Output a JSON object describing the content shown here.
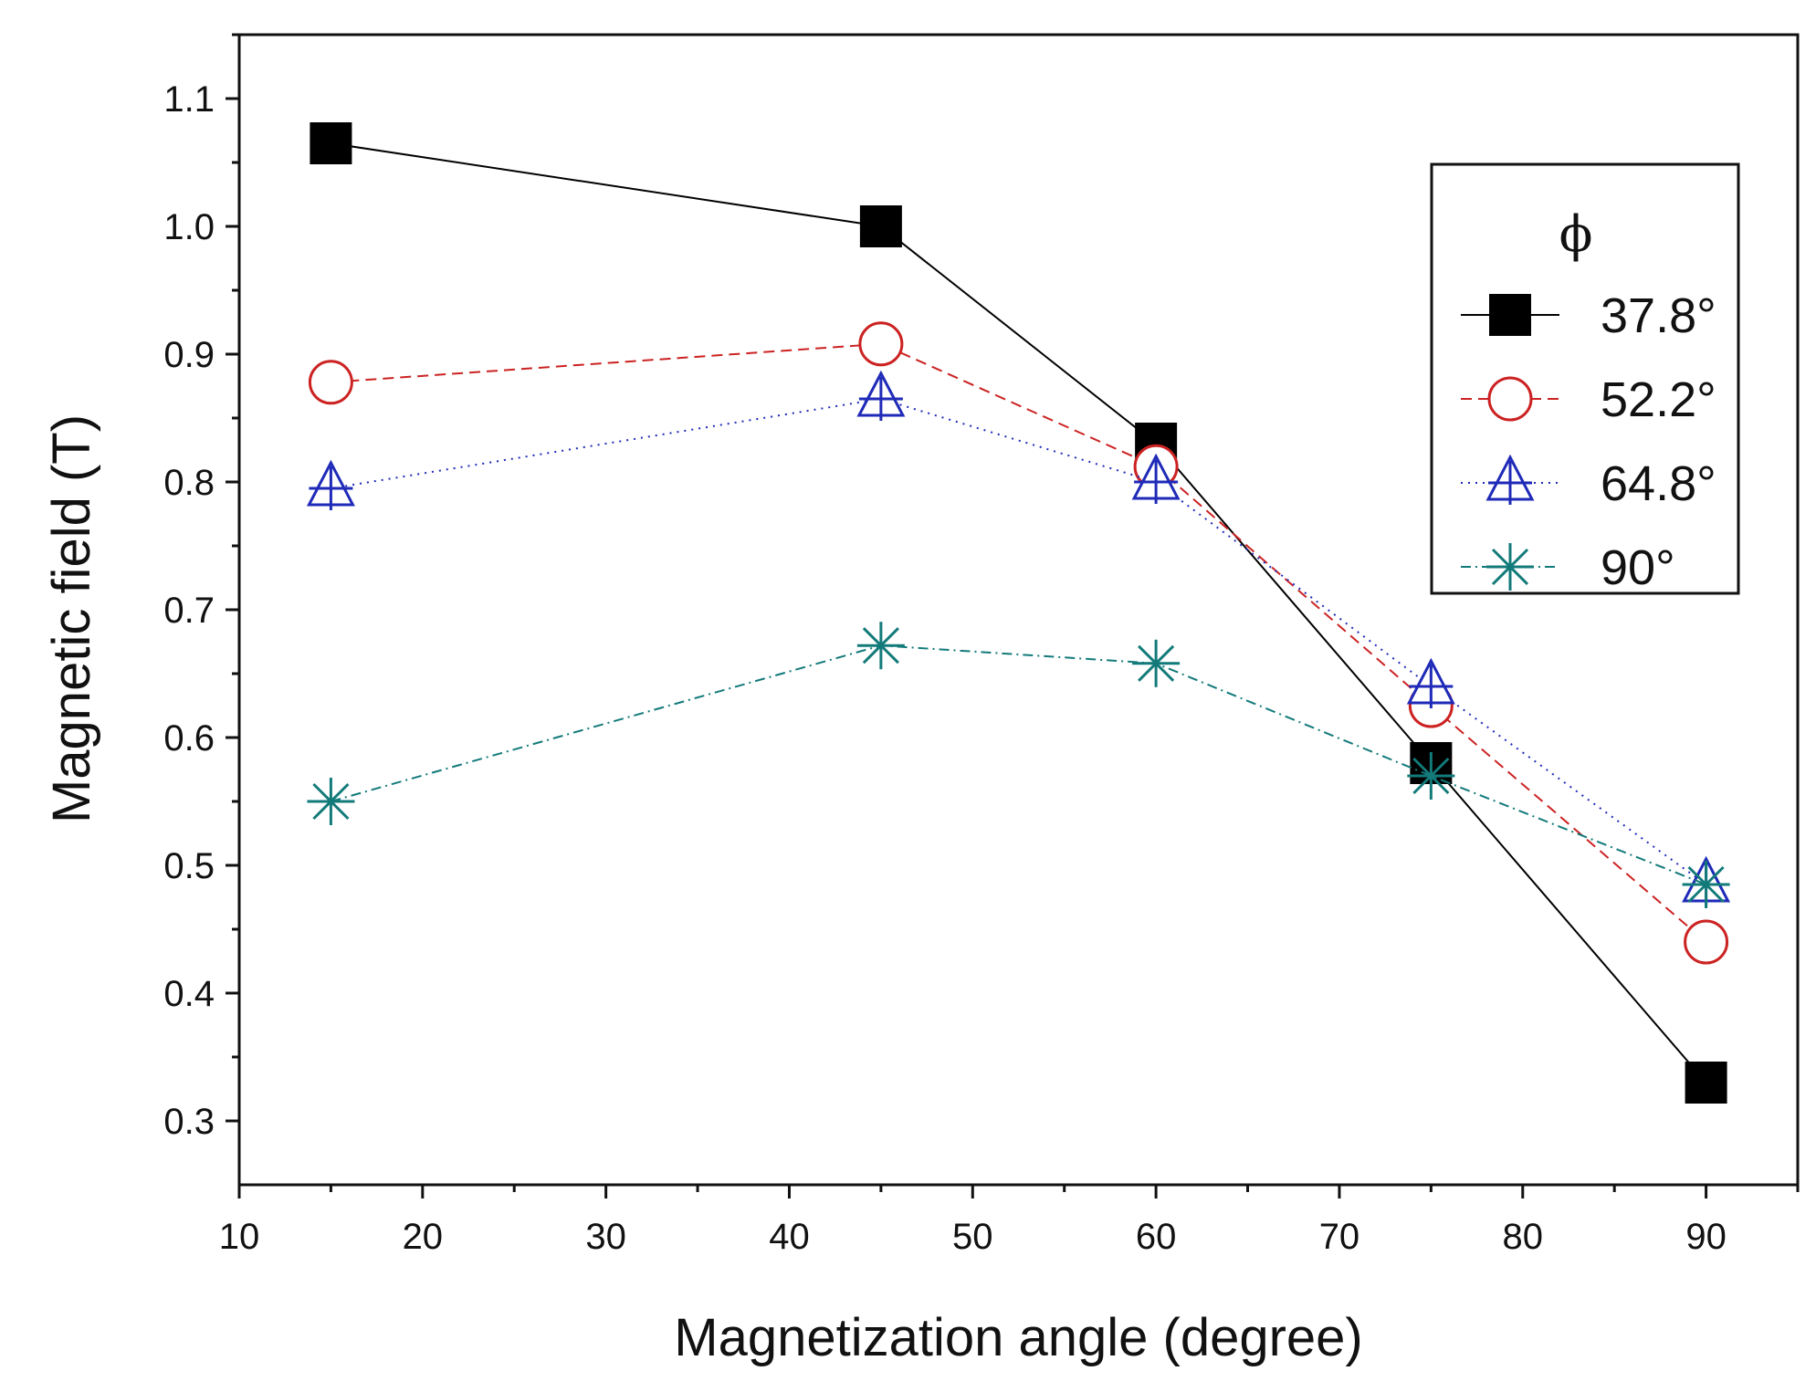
{
  "chart_data": {
    "type": "line",
    "title": "",
    "xlabel": "Magnetization angle (degree)",
    "ylabel": "Magnetic field (T)",
    "xlim": [
      10,
      95
    ],
    "ylim": [
      0.25,
      1.15
    ],
    "x_ticks": [
      10,
      20,
      30,
      40,
      50,
      60,
      70,
      80,
      90
    ],
    "x_tick_labels": [
      "10",
      "20",
      "30",
      "40",
      "50",
      "60",
      "70",
      "80",
      "90"
    ],
    "y_ticks": [
      0.3,
      0.4,
      0.5,
      0.6,
      0.7,
      0.8,
      0.9,
      1.0,
      1.1
    ],
    "y_tick_labels": [
      "0.3",
      "0.4",
      "0.5",
      "0.6",
      "0.7",
      "0.8",
      "0.9",
      "1.0",
      "1.1"
    ],
    "grid": false,
    "legend": {
      "title": "ϕ",
      "placement": "top-right"
    },
    "x": [
      15,
      45,
      60,
      75,
      90
    ],
    "series": [
      {
        "name": "37.8°",
        "values": [
          1.065,
          1.0,
          0.83,
          0.58,
          0.33
        ],
        "color": "#000000",
        "marker": "square",
        "line_style": "solid"
      },
      {
        "name": "52.2°",
        "values": [
          0.878,
          0.908,
          0.812,
          0.625,
          0.44
        ],
        "color": "#cc2222",
        "marker": "circle",
        "line_style": "dashed"
      },
      {
        "name": "64.8°",
        "values": [
          0.795,
          0.865,
          0.8,
          0.64,
          0.485
        ],
        "color": "#1f2ab8",
        "marker": "triangle",
        "line_style": "dotted"
      },
      {
        "name": "90°",
        "values": [
          0.55,
          0.672,
          0.658,
          0.57,
          0.485
        ],
        "color": "#137a7a",
        "marker": "asterisk",
        "line_style": "dashdot"
      }
    ]
  }
}
